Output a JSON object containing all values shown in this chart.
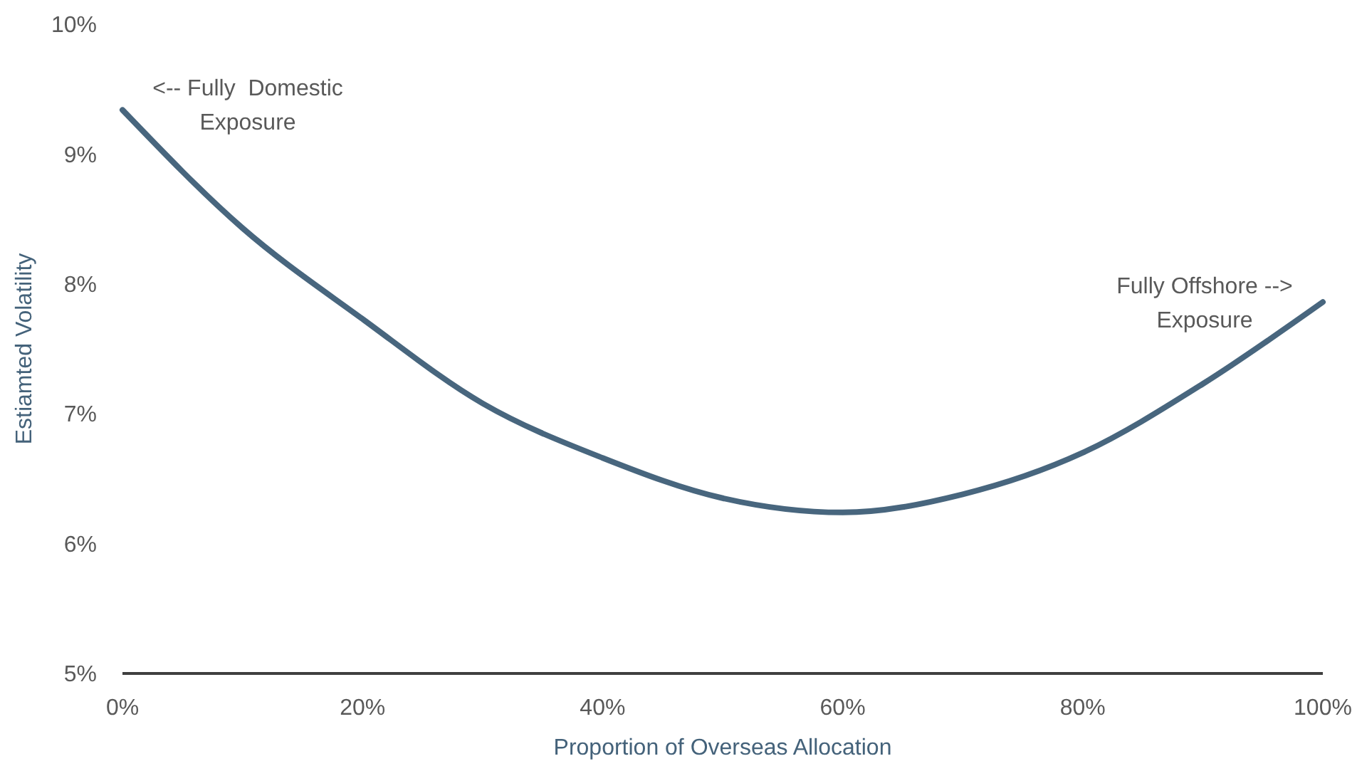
{
  "chart_data": {
    "type": "line",
    "xlabel": "Proportion of Overseas Allocation",
    "ylabel": "Estiamted Volatility",
    "x": [
      0,
      10,
      20,
      30,
      40,
      50,
      60,
      70,
      80,
      90,
      100
    ],
    "series": [
      {
        "color": "#48667e",
        "values": [
          9.34,
          8.43,
          7.73,
          7.08,
          6.66,
          6.35,
          6.24,
          6.38,
          6.7,
          7.23,
          7.86
        ]
      }
    ],
    "xlim": [
      0,
      100
    ],
    "xticks": [
      {
        "value": 0,
        "label": "0%"
      },
      {
        "value": 20,
        "label": "20%"
      },
      {
        "value": 40,
        "label": "40%"
      },
      {
        "value": 60,
        "label": "60%"
      },
      {
        "value": 80,
        "label": "80%"
      },
      {
        "value": 100,
        "label": "100%"
      }
    ],
    "ylim": [
      5,
      10
    ],
    "yticks": [
      {
        "value": 5,
        "label": "5%"
      },
      {
        "value": 6,
        "label": "6%"
      },
      {
        "value": 7,
        "label": "7%"
      },
      {
        "value": 8,
        "label": "8%"
      },
      {
        "value": 9,
        "label": "9%"
      },
      {
        "value": 10,
        "label": "10%"
      }
    ],
    "grid": false,
    "marker": "none",
    "line_style": "solid",
    "annotations": [
      {
        "text": "<-- Fully  Domestic\nExposure",
        "x": 0,
        "y": 9.34
      },
      {
        "text": "Fully Offshore -->\nExposure",
        "x": 100,
        "y": 7.86
      }
    ]
  }
}
